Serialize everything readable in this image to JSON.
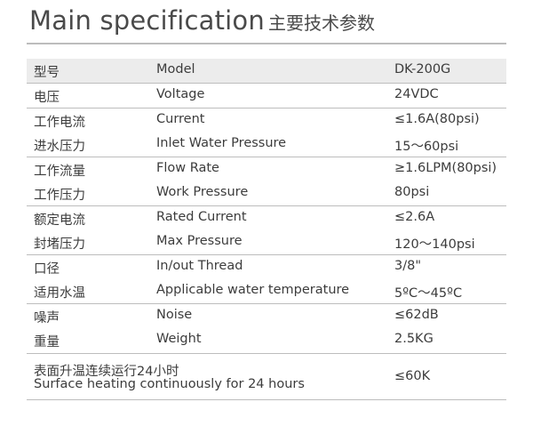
{
  "title": {
    "en": "Main specification",
    "cn": "主要技术参数"
  },
  "table": {
    "header": {
      "cn": "型号",
      "en": "Model",
      "value": "DK-200G"
    },
    "rows": [
      {
        "cn": "电压",
        "en": "Voltage",
        "value": "24VDC"
      },
      {
        "cn": "工作电流",
        "en": "Current",
        "value": "≤1.6A(80psi)"
      },
      {
        "cn": "进水压力",
        "en": "Inlet Water Pressure",
        "value": "15～60psi"
      },
      {
        "cn": "工作流量",
        "en": "Flow Rate",
        "value": "≥1.6LPM(80psi)"
      },
      {
        "cn": "工作压力",
        "en": "Work Pressure",
        "value": "80psi"
      },
      {
        "cn": "额定电流",
        "en": "Rated Current",
        "value": "≤2.6A"
      },
      {
        "cn": "封堵压力",
        "en": "Max Pressure",
        "value": "120～140psi"
      },
      {
        "cn": "口径",
        "en": "In/out Thread",
        "value": "3/8\""
      },
      {
        "cn": "适用水温",
        "en": "Applicable water temperature",
        "value": "5ºC～45ºC"
      },
      {
        "cn": "噪声",
        "en": "Noise",
        "value": "≤62dB"
      },
      {
        "cn": "重量",
        "en": "Weight",
        "value": "2.5KG"
      }
    ],
    "last": {
      "cn": "表面升温连续运行24小时",
      "en": "Surface heating continuously for 24 hours",
      "value": "≤60K"
    }
  }
}
